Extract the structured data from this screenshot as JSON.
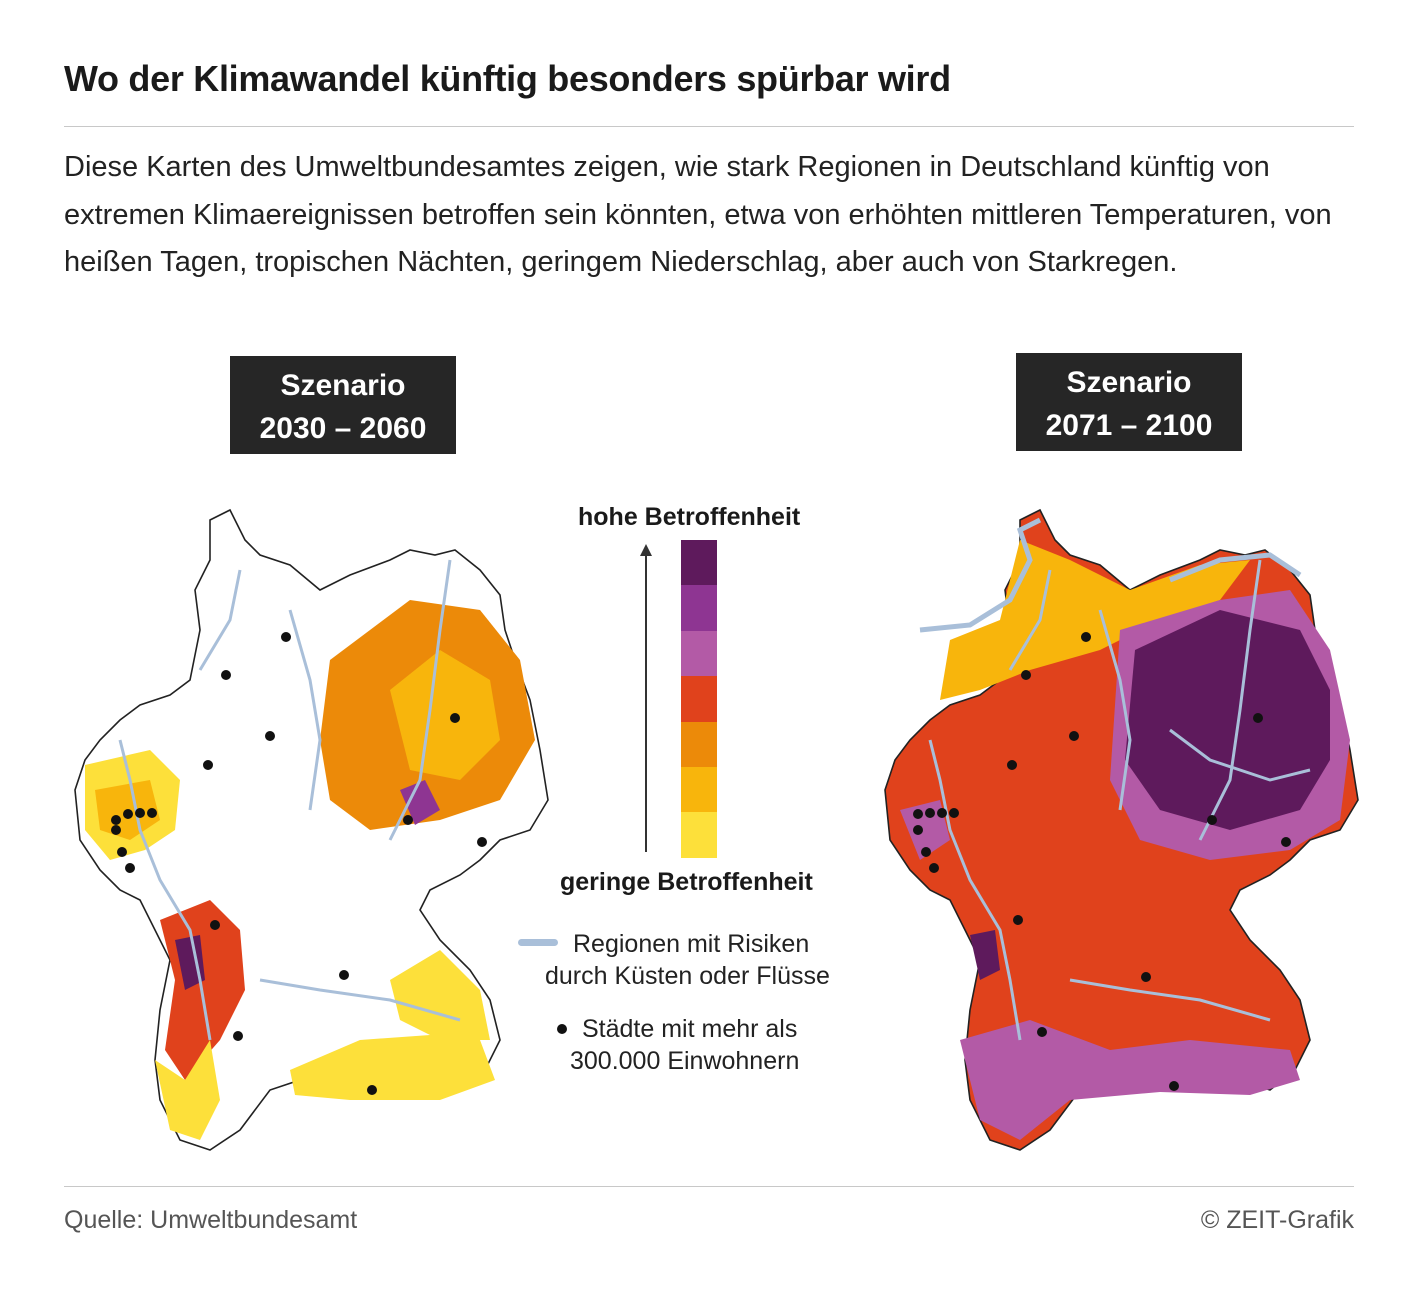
{
  "title": "Wo der Klimawandel künftig besonders spürbar wird",
  "intro": "Diese Karten des Umweltbundesamtes zeigen, wie stark Regionen in Deutschland künftig von extremen Klimaereignissen betroffen sein könnten, etwa von erhöhten mittleren Temperaturen, von heißen Tagen, tropischen Nächten, geringem Niederschlag, aber auch von Starkregen.",
  "scenarios": [
    {
      "label": "Szenario",
      "years": "2030 – 2060"
    },
    {
      "label": "Szenario",
      "years": "2071 – 2100"
    }
  ],
  "legend": {
    "high": "hohe Betroffenheit",
    "low": "geringe Betroffenheit",
    "scale_colors": [
      "#5e1a5c",
      "#8e3592",
      "#b35aa6",
      "#e0421c",
      "#ec8a09",
      "#f8b50c",
      "#fde03a"
    ],
    "river_line1": "Regionen mit Risiken",
    "river_line2": "durch Küsten oder Flüsse",
    "river_color": "#a9bfd9",
    "city_line1": "Städte mit mehr als",
    "city_line2": "300.000 Einwohnern"
  },
  "footer": {
    "source": "Quelle: Umweltbundesamt",
    "credit": "© ZEIT-Grafik"
  }
}
